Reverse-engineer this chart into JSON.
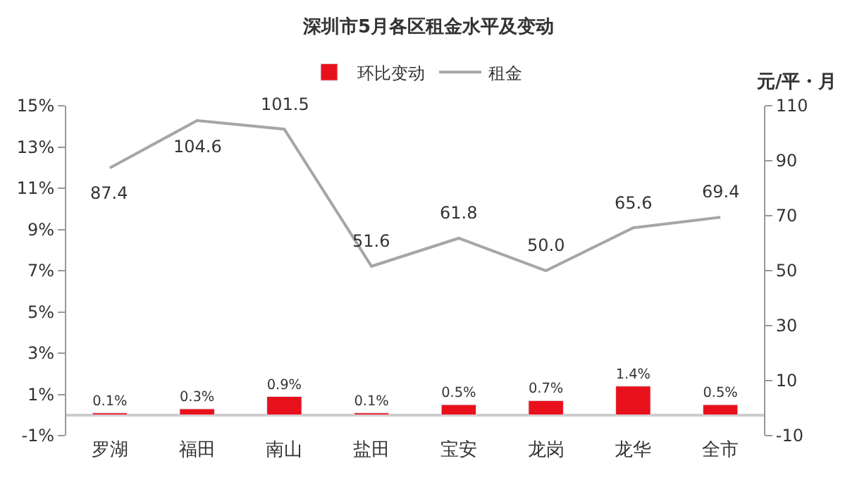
{
  "chart_data": {
    "type": "bar",
    "title": "深圳市5月各区租金水平及变动",
    "y2label": "元/平・月",
    "categories": [
      "罗湖",
      "福田",
      "南山",
      "盐田",
      "宝安",
      "龙岗",
      "龙华",
      "全市"
    ],
    "series": [
      {
        "name": "环比变动",
        "color": "#e8111b",
        "values": [
          0.1,
          0.3,
          0.9,
          0.1,
          0.5,
          0.7,
          1.4,
          0.5
        ],
        "value_labels": [
          "0.1%",
          "0.3%",
          "0.9%",
          "0.1%",
          "0.5%",
          "0.7%",
          "1.4%",
          "0.5%"
        ]
      },
      {
        "name": "租金",
        "type": "line",
        "axis": "y2",
        "color": "#a6a6a6",
        "values": [
          87.4,
          104.6,
          101.5,
          51.6,
          61.8,
          50.0,
          65.6,
          69.4
        ],
        "value_labels": [
          "87.4",
          "104.6",
          "101.5",
          "51.6",
          "61.8",
          "50.0",
          "65.6",
          "69.4"
        ]
      }
    ],
    "ylim": [
      -1,
      15
    ],
    "yticks": [
      {
        "value": -1,
        "label": "-1%"
      },
      {
        "value": 1,
        "label": "1%"
      },
      {
        "value": 3,
        "label": "3%"
      },
      {
        "value": 5,
        "label": "5%"
      },
      {
        "value": 7,
        "label": "7%"
      },
      {
        "value": 9,
        "label": "9%"
      },
      {
        "value": 11,
        "label": "11%"
      },
      {
        "value": 13,
        "label": "13%"
      },
      {
        "value": 15,
        "label": "15%"
      }
    ],
    "y2lim": [
      -10,
      110
    ],
    "y2ticks": [
      -10,
      10,
      30,
      50,
      70,
      90,
      110
    ],
    "legend": "top",
    "marker": "none",
    "line_style": "solid"
  }
}
